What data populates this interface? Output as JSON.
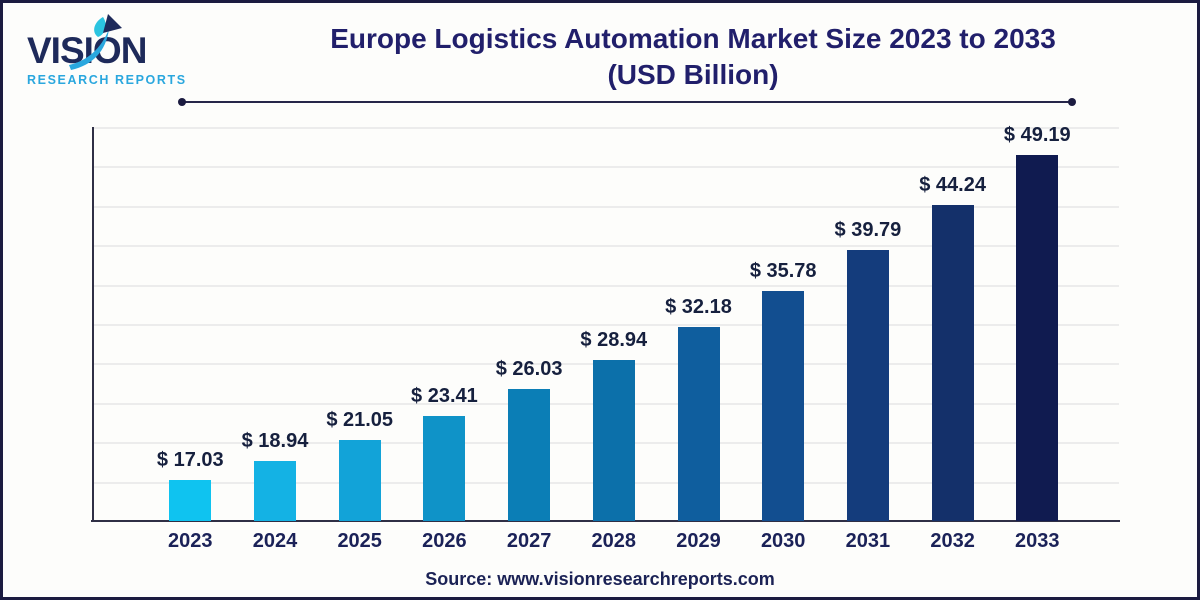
{
  "logo": {
    "brand": "VISION",
    "tagline": "RESEARCH REPORTS"
  },
  "header": {
    "title_line1": "Europe Logistics Automation Market Size 2023 to 2033",
    "title_line2": "(USD Billion)"
  },
  "source": {
    "text": "Source: www.visionresearchreports.com"
  },
  "colors": {
    "background": "#fdfdfb",
    "frame_border": "#1b1b40",
    "title": "#211f6b",
    "value_label": "#16203e",
    "year_label": "#1b2258",
    "axis": "#2f2f45",
    "gridline": "#ececec",
    "source_text": "#1b2255",
    "brand_navy": "#1e2a5a",
    "brand_cyan": "#2aa7de"
  },
  "chart_data": {
    "type": "bar",
    "title": "Europe Logistics Automation Market Size 2023 to 2033 (USD Billion)",
    "unit": "USD Billion",
    "categories": [
      "2023",
      "2024",
      "2025",
      "2026",
      "2027",
      "2028",
      "2029",
      "2030",
      "2031",
      "2032",
      "2033"
    ],
    "values": [
      17.03,
      18.94,
      21.05,
      23.41,
      26.03,
      28.94,
      32.18,
      35.78,
      39.79,
      44.24,
      49.19
    ],
    "value_labels": [
      "$ 17.03",
      "$ 18.94",
      "$ 21.05",
      "$ 23.41",
      "$ 26.03",
      "$ 28.94",
      "$ 32.18",
      "$ 35.78",
      "$ 39.79",
      "$ 44.24",
      "$ 49.19"
    ],
    "value_prefix": "$ ",
    "bar_colors": [
      "#0fc3f0",
      "#14b2e4",
      "#12a3d8",
      "#0f93c8",
      "#0b7eb6",
      "#0c70aa",
      "#0f5e9e",
      "#124e90",
      "#143c7c",
      "#14306a",
      "#101b50"
    ],
    "xlabel": "",
    "ylabel": "",
    "ylim": [
      13,
      52
    ],
    "grid": "horizontal",
    "legend": "none"
  }
}
